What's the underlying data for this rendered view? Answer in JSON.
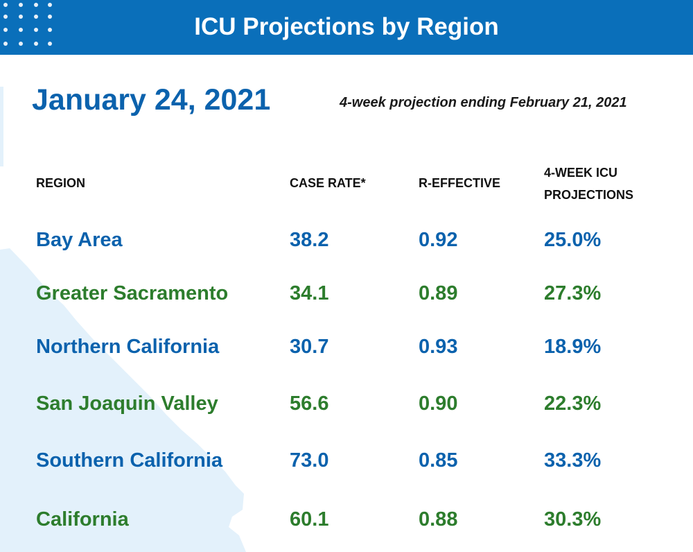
{
  "header": {
    "title": "ICU Projections by Region"
  },
  "report": {
    "date": "January 24, 2021",
    "subtitle": "4-week projection ending February 21, 2021"
  },
  "table": {
    "columns": [
      "REGION",
      "CASE RATE*",
      "R-EFFECTIVE",
      "4-WEEK ICU\nPROJECTIONS"
    ],
    "columns_lines": {
      "region": "REGION",
      "case_rate": "CASE RATE*",
      "r_effective": "R-EFFECTIVE",
      "icu_line1": "4-WEEK ICU",
      "icu_line2": "PROJECTIONS"
    },
    "rows": [
      {
        "region": "Bay Area",
        "case_rate": "38.2",
        "r_effective": "0.92",
        "icu": "25.0%",
        "color": "#0b62ad"
      },
      {
        "region": "Greater Sacramento",
        "case_rate": "34.1",
        "r_effective": "0.89",
        "icu": "27.3%",
        "color": "#2d7d2d"
      },
      {
        "region": "Northern California",
        "case_rate": "30.7",
        "r_effective": "0.93",
        "icu": "18.9%",
        "color": "#0b62ad"
      },
      {
        "region": "San Joaquin Valley",
        "case_rate": "56.6",
        "r_effective": "0.90",
        "icu": "22.3%",
        "color": "#2d7d2d"
      },
      {
        "region": "Southern California",
        "case_rate": "73.0",
        "r_effective": "0.85",
        "icu": "33.3%",
        "color": "#0b62ad"
      },
      {
        "region": "California",
        "case_rate": "60.1",
        "r_effective": "0.88",
        "icu": "30.3%",
        "color": "#2d7d2d"
      }
    ]
  },
  "colors": {
    "header_bg": "#0a6fba",
    "primary_blue": "#0b62ad",
    "primary_green": "#2d7d2d",
    "map_fill": "#e3f1fb"
  }
}
